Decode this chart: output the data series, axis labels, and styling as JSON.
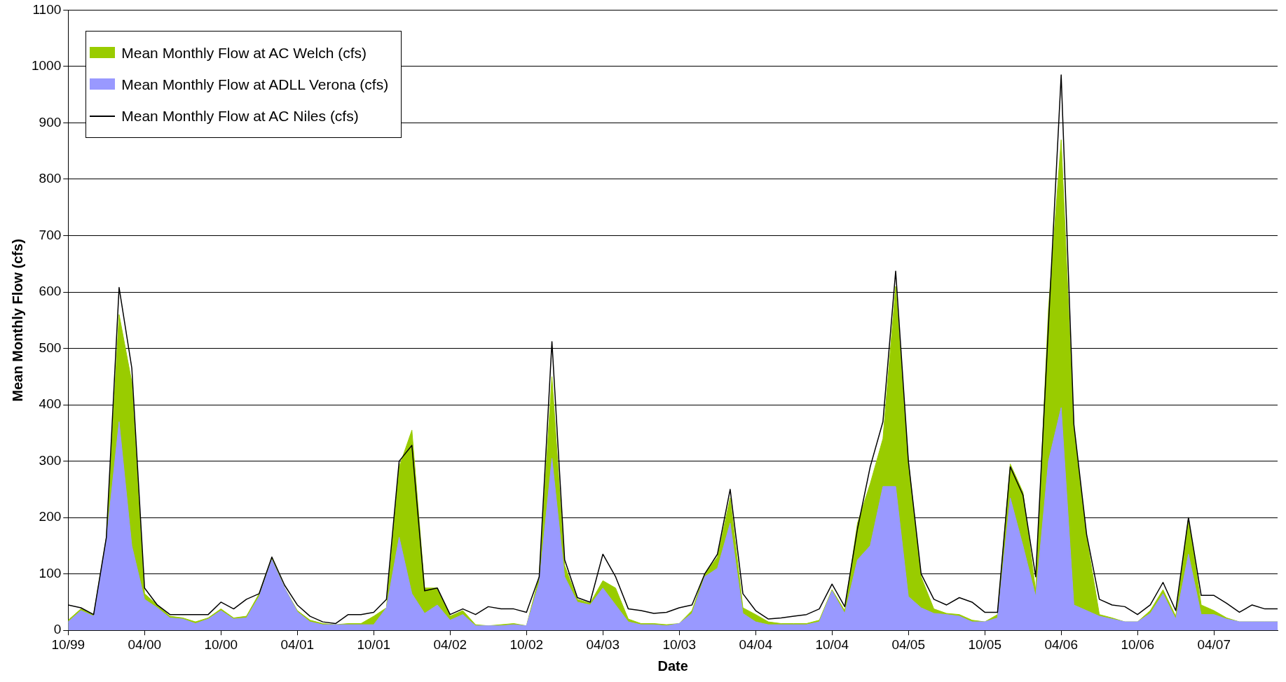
{
  "chart_data": {
    "type": "area",
    "xlabel": "Date",
    "ylabel": "Mean Monthly Flow (cfs)",
    "categories": [
      "10/99",
      null,
      null,
      null,
      null,
      null,
      "04/00",
      null,
      null,
      null,
      null,
      null,
      "10/00",
      null,
      null,
      null,
      null,
      null,
      "04/01",
      null,
      null,
      null,
      null,
      null,
      "10/01",
      null,
      null,
      null,
      null,
      null,
      "04/02",
      null,
      null,
      null,
      null,
      null,
      "10/02",
      null,
      null,
      null,
      null,
      null,
      "04/03",
      null,
      null,
      null,
      null,
      null,
      "10/03",
      null,
      null,
      null,
      null,
      null,
      "04/04",
      null,
      null,
      null,
      null,
      null,
      "10/04",
      null,
      null,
      null,
      null,
      null,
      "04/05",
      null,
      null,
      null,
      null,
      null,
      "10/05",
      null,
      null,
      null,
      null,
      null,
      "04/06",
      null,
      null,
      null,
      null,
      null,
      "10/06",
      null,
      null,
      null,
      null,
      null,
      "04/07",
      null,
      null,
      null,
      null,
      null
    ],
    "series": [
      {
        "name": "Mean Monthly Flow at AC Welch (cfs)",
        "type": "area",
        "color": "#99cc00",
        "values": [
          18,
          38,
          28,
          165,
          560,
          440,
          65,
          45,
          25,
          22,
          15,
          22,
          38,
          22,
          25,
          65,
          128,
          75,
          35,
          18,
          12,
          10,
          12,
          12,
          25,
          40,
          290,
          355,
          75,
          75,
          25,
          35,
          10,
          8,
          10,
          12,
          8,
          95,
          450,
          115,
          55,
          48,
          88,
          75,
          20,
          12,
          12,
          10,
          12,
          35,
          100,
          130,
          235,
          40,
          28,
          15,
          12,
          12,
          12,
          18,
          72,
          35,
          190,
          260,
          340,
          610,
          300,
          95,
          38,
          30,
          28,
          18,
          15,
          28,
          295,
          245,
          70,
          570,
          870,
          360,
          165,
          28,
          22,
          15,
          15,
          35,
          72,
          25,
          200,
          45,
          35,
          22,
          15,
          15,
          15,
          15
        ]
      },
      {
        "name": "Mean Monthly Flow at ADLL Verona (cfs)",
        "type": "area",
        "color": "#9999ff",
        "values": [
          15,
          35,
          25,
          160,
          370,
          150,
          55,
          40,
          22,
          20,
          12,
          20,
          35,
          20,
          22,
          60,
          125,
          75,
          33,
          15,
          10,
          10,
          10,
          10,
          10,
          40,
          165,
          65,
          30,
          45,
          18,
          28,
          8,
          8,
          8,
          10,
          8,
          85,
          305,
          95,
          50,
          45,
          75,
          45,
          15,
          10,
          10,
          8,
          12,
          30,
          95,
          110,
          190,
          30,
          15,
          10,
          10,
          10,
          10,
          15,
          70,
          30,
          125,
          150,
          255,
          255,
          60,
          40,
          30,
          28,
          25,
          15,
          15,
          22,
          235,
          150,
          60,
          300,
          395,
          45,
          35,
          25,
          20,
          15,
          15,
          30,
          65,
          20,
          135,
          28,
          28,
          20,
          15,
          15,
          15,
          15
        ]
      },
      {
        "name": "Mean Monthly Flow at AC Niles (cfs)",
        "type": "line",
        "color": "#000000",
        "values": [
          45,
          40,
          28,
          165,
          608,
          465,
          75,
          45,
          28,
          28,
          28,
          28,
          50,
          38,
          55,
          65,
          130,
          80,
          45,
          25,
          15,
          12,
          28,
          28,
          32,
          55,
          300,
          328,
          70,
          75,
          28,
          38,
          28,
          42,
          38,
          38,
          32,
          95,
          512,
          125,
          58,
          50,
          135,
          95,
          38,
          35,
          30,
          32,
          40,
          45,
          100,
          135,
          250,
          65,
          35,
          20,
          22,
          25,
          28,
          38,
          82,
          42,
          180,
          290,
          370,
          637,
          300,
          100,
          55,
          45,
          58,
          50,
          32,
          32,
          290,
          240,
          95,
          540,
          985,
          365,
          170,
          55,
          45,
          42,
          28,
          45,
          85,
          35,
          200,
          62,
          62,
          48,
          32,
          45,
          38,
          38
        ]
      }
    ],
    "ylim": [
      0,
      1100
    ],
    "yticks": [
      0,
      100,
      200,
      300,
      400,
      500,
      600,
      700,
      800,
      900,
      1000,
      1100
    ],
    "grid": "y",
    "legend": "top left",
    "marker": "none",
    "line_style": "solid"
  }
}
